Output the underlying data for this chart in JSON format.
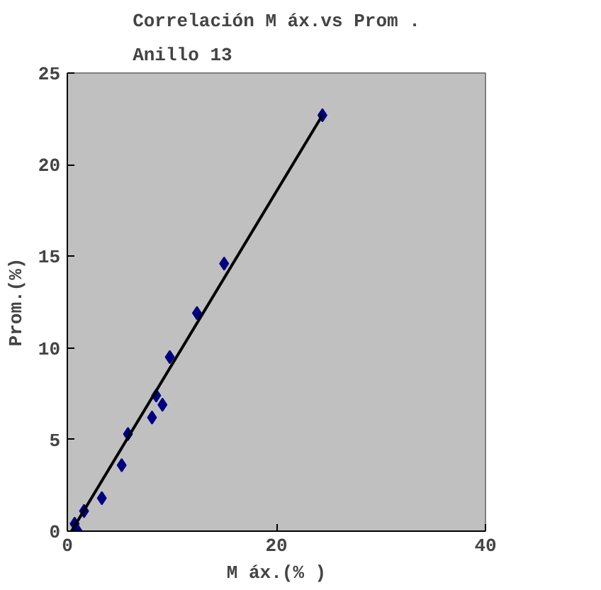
{
  "chart_data": {
    "type": "scatter",
    "title": "Correlación M áx.vs Prom .\nAnillo 13",
    "xlabel": "M áx.(% )",
    "ylabel": "Prom.(%)",
    "xlim": [
      0,
      40
    ],
    "ylim": [
      0,
      25
    ],
    "xticks": [
      0,
      20,
      40
    ],
    "yticks": [
      0,
      5,
      10,
      15,
      20,
      25
    ],
    "grid": false,
    "series": [
      {
        "marker": "diamond",
        "color": "#000080",
        "x": [
          24.4,
          15.0,
          12.4,
          9.8,
          8.5,
          9.1,
          8.1,
          5.8,
          5.2,
          3.3,
          1.6,
          0.7,
          1.0
        ],
        "values": [
          22.7,
          14.6,
          11.9,
          9.5,
          7.4,
          6.9,
          6.2,
          5.3,
          3.6,
          1.8,
          1.1,
          0.4,
          0.0
        ]
      },
      {
        "type": "line",
        "color": "#000000",
        "x": [
          0.4,
          24.4
        ],
        "values": [
          0.0,
          22.7
        ]
      }
    ]
  }
}
